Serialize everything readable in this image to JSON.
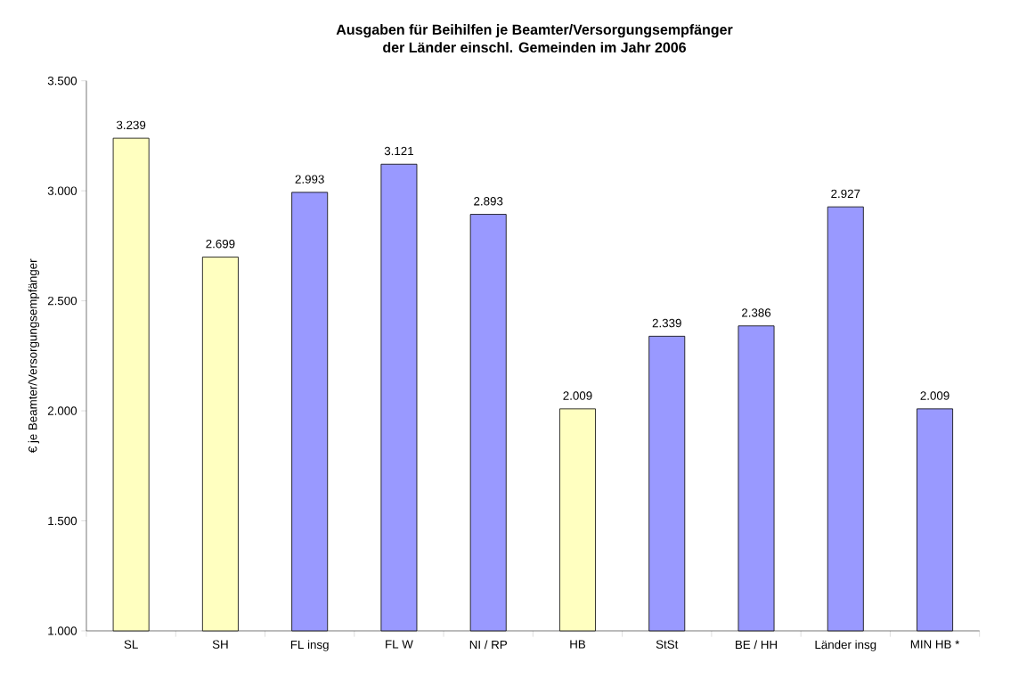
{
  "chart_data": {
    "type": "bar",
    "title": "Ausgaben für Beihilfen je Beamter/Versorgungsempfänger\nder Länder einschl. Gemeinden im Jahr 2006",
    "ylabel": "€ je Beamter/Versorgungsempfänger",
    "categories": [
      "SL",
      "SH",
      "FL insg",
      "FL W",
      "NI / RP",
      "HB",
      "StSt",
      "BE / HH",
      "Länder insg",
      "MIN HB *"
    ],
    "values": [
      3239,
      2699,
      2993,
      3121,
      2893,
      2009,
      2339,
      2386,
      2927,
      2009
    ],
    "value_labels": [
      "3.239",
      "2.699",
      "2.993",
      "3.121",
      "2.893",
      "2.009",
      "2.339",
      "2.386",
      "2.927",
      "2.009"
    ],
    "colors": [
      "#ffffc0",
      "#ffffc0",
      "#9999ff",
      "#9999ff",
      "#9999ff",
      "#ffffc0",
      "#9999ff",
      "#9999ff",
      "#9999ff",
      "#9999ff"
    ],
    "ylim": [
      1000,
      3500
    ],
    "yticks": [
      {
        "value": 1000,
        "label": "1.000"
      },
      {
        "value": 1500,
        "label": "1.500"
      },
      {
        "value": 2000,
        "label": "2.000"
      },
      {
        "value": 2500,
        "label": "2.500"
      },
      {
        "value": 3000,
        "label": "3.000"
      },
      {
        "value": 3500,
        "label": "3.500"
      }
    ],
    "grid": false
  }
}
